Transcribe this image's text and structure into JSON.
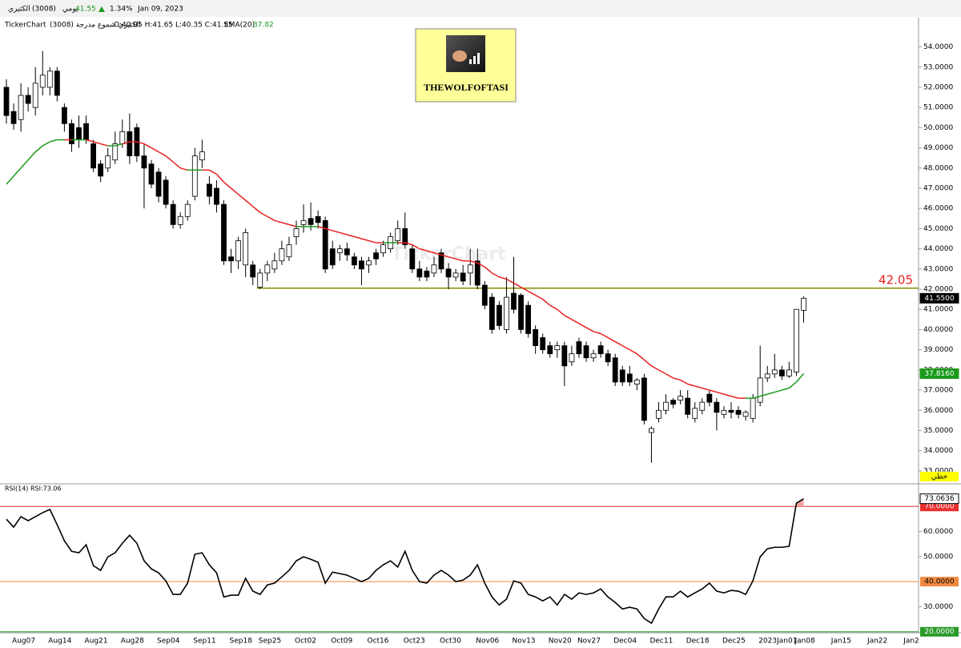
{
  "header": {
    "name": "الكثيري",
    "code": "(3008)",
    "period": "يومي",
    "price": "41.55",
    "change": "1.34%",
    "date": "Jan 09, 2023"
  },
  "legend_line": {
    "source": "TickerChart",
    "title": "الكثيري شموع مدرجة (3008)",
    "ohlc": "O:40.95 H:41.65 L:40.35 C:41.55",
    "ema_value": "37.82"
  },
  "logo": {
    "text": "THEWOLFOFTASI"
  },
  "watermark": "TickerChart",
  "chart_data": [
    {
      "type": "candlestick",
      "up_color": "#ffffff",
      "down_color": "#000000",
      "categories": [
        null,
        "Aug07",
        null,
        null,
        null,
        null,
        "Aug14",
        null,
        null,
        null,
        null,
        "Aug21",
        null,
        null,
        null,
        null,
        "Aug28",
        null,
        null,
        null,
        null,
        "Sep04",
        null,
        null,
        null,
        null,
        "Sep11",
        null,
        null,
        null,
        null,
        "Sep18",
        null,
        null,
        null,
        "Sep25",
        null,
        null,
        null,
        null,
        "Oct02",
        null,
        null,
        null,
        null,
        "Oct09",
        null,
        null,
        null,
        null,
        "Oct16",
        null,
        null,
        null,
        null,
        "Oct23",
        null,
        null,
        null,
        null,
        "Oct30",
        null,
        null,
        null,
        null,
        "Nov06",
        null,
        null,
        null,
        null,
        "Nov13",
        null,
        null,
        null,
        null,
        "Nov20",
        null,
        null,
        null,
        "Nov27",
        null,
        null,
        null,
        null,
        "Dec04",
        null,
        null,
        null,
        null,
        "Dec11",
        null,
        null,
        null,
        null,
        "Dec18",
        null,
        null,
        null,
        null,
        "Dec25",
        null,
        null,
        null,
        null,
        "2023Jan01",
        null,
        null,
        null,
        null,
        "Jan08",
        null,
        null,
        null,
        null,
        "Jan15",
        null,
        null,
        null,
        null,
        "Jan22",
        null,
        null,
        null,
        null,
        "Jan2"
      ],
      "open": [
        52.0,
        50.8,
        50.4,
        51.6,
        51.0,
        52.0,
        52.0,
        52.8,
        51.0,
        50.2,
        50.0,
        50.2,
        49.2,
        48.2,
        48.0,
        48.4,
        49.2,
        49.8,
        50.0,
        48.6,
        48.2,
        47.8,
        47.4,
        46.2,
        45.2,
        45.6,
        46.6,
        48.4,
        47.2,
        47.0,
        46.2,
        43.6,
        43.4,
        43.2,
        43.2,
        42.1,
        42.8,
        43.0,
        43.4,
        43.6,
        44.6,
        45.2,
        45.5,
        45.6,
        45.4,
        44.0,
        43.8,
        44.0,
        43.6,
        43.4,
        43.2,
        43.8,
        43.8,
        44.0,
        44.4,
        45.0,
        44.0,
        43.0,
        42.9,
        42.8,
        43.8,
        43.0,
        42.6,
        42.8,
        42.8,
        43.4,
        42.2,
        41.6,
        41.2,
        40.0,
        41.8,
        41.7,
        41.2,
        40.0,
        39.6,
        39.2,
        39.0,
        39.2,
        38.4,
        39.4,
        39.2,
        38.6,
        39.2,
        38.8,
        38.6,
        38.0,
        37.8,
        37.3,
        37.6,
        34.9,
        35.6,
        36.0,
        36.5,
        36.5,
        36.6,
        35.6,
        36.0,
        36.8,
        36.4,
        35.8,
        36.0,
        36.0,
        35.7,
        35.6,
        36.4,
        37.6,
        37.8,
        38.0,
        37.7,
        37.9,
        40.95,
        null,
        null,
        null,
        null,
        null,
        null,
        null,
        null,
        null,
        null,
        null,
        null,
        null,
        null
      ],
      "high": [
        52.4,
        51.2,
        52.2,
        52.0,
        53.0,
        53.8,
        53.0,
        53.0,
        51.2,
        50.4,
        50.6,
        50.6,
        49.4,
        48.4,
        49.0,
        49.8,
        50.4,
        50.7,
        50.2,
        49.2,
        48.4,
        48.0,
        47.6,
        46.4,
        45.8,
        46.4,
        49.0,
        49.4,
        47.6,
        47.4,
        46.4,
        44.0,
        44.6,
        45.0,
        43.4,
        43.0,
        43.4,
        43.8,
        44.4,
        44.6,
        45.4,
        46.2,
        46.3,
        45.9,
        45.6,
        44.4,
        44.2,
        44.3,
        43.8,
        43.6,
        43.6,
        44.0,
        44.4,
        44.8,
        45.4,
        45.8,
        44.2,
        43.4,
        43.1,
        43.6,
        44.0,
        43.3,
        43.0,
        43.2,
        44.0,
        44.0,
        42.4,
        41.8,
        41.4,
        42.6,
        43.6,
        41.8,
        41.4,
        40.2,
        39.8,
        39.4,
        39.4,
        39.4,
        39.2,
        39.6,
        39.4,
        39.0,
        39.4,
        39.0,
        38.8,
        38.2,
        38.2,
        37.6,
        37.8,
        35.2,
        36.4,
        36.8,
        36.6,
        37.0,
        37.0,
        36.4,
        36.6,
        37.0,
        36.6,
        36.2,
        36.4,
        36.2,
        36.0,
        36.8,
        39.2,
        38.2,
        38.8,
        38.2,
        38.4,
        41.0,
        41.65,
        null,
        null,
        null,
        null,
        null,
        null,
        null,
        null,
        null,
        null,
        null,
        null,
        null,
        null
      ],
      "low": [
        50.2,
        49.9,
        49.8,
        50.8,
        50.6,
        51.6,
        51.6,
        51.3,
        49.8,
        48.8,
        49.0,
        49.2,
        47.8,
        47.3,
        47.8,
        48.2,
        49.0,
        48.2,
        48.3,
        46.0,
        47.0,
        46.3,
        46.0,
        45.0,
        45.0,
        45.4,
        46.4,
        48.0,
        46.2,
        45.8,
        43.2,
        42.8,
        43.0,
        42.6,
        42.2,
        42.0,
        42.4,
        42.8,
        43.2,
        43.4,
        44.2,
        44.8,
        44.9,
        45.0,
        42.8,
        43.0,
        43.4,
        43.4,
        43.0,
        42.2,
        42.8,
        43.2,
        43.6,
        43.8,
        44.2,
        44.0,
        42.8,
        42.4,
        42.4,
        42.6,
        42.8,
        42.0,
        42.4,
        42.2,
        42.2,
        42.0,
        41.0,
        39.8,
        40.0,
        39.8,
        40.8,
        39.8,
        39.6,
        38.8,
        38.8,
        38.6,
        38.6,
        37.2,
        38.2,
        38.6,
        38.4,
        38.4,
        38.6,
        38.2,
        37.2,
        37.2,
        37.2,
        37.0,
        35.3,
        33.4,
        35.4,
        35.8,
        36.1,
        36.3,
        35.6,
        35.4,
        35.8,
        36.2,
        35.0,
        35.6,
        35.6,
        35.6,
        35.5,
        35.4,
        36.2,
        37.4,
        37.6,
        37.5,
        37.6,
        37.7,
        40.35,
        null,
        null,
        null,
        null,
        null,
        null,
        null,
        null,
        null,
        null,
        null,
        null,
        null,
        null
      ],
      "close": [
        50.6,
        50.2,
        51.6,
        51.2,
        52.2,
        52.6,
        52.8,
        51.6,
        50.2,
        49.2,
        49.4,
        49.4,
        48.0,
        47.6,
        48.6,
        49.2,
        49.8,
        48.6,
        48.6,
        48.0,
        47.2,
        46.6,
        46.2,
        45.2,
        45.6,
        46.2,
        48.6,
        48.8,
        46.6,
        46.2,
        43.4,
        43.4,
        44.4,
        44.8,
        42.6,
        42.8,
        43.2,
        43.4,
        44.0,
        44.2,
        45.0,
        45.4,
        45.2,
        45.3,
        43.0,
        43.2,
        44.0,
        43.7,
        43.2,
        43.0,
        43.4,
        43.5,
        44.2,
        44.6,
        45.0,
        44.2,
        43.0,
        42.6,
        42.6,
        43.2,
        43.0,
        42.6,
        42.8,
        42.4,
        43.2,
        42.2,
        41.2,
        40.0,
        40.2,
        41.6,
        41.0,
        40.0,
        39.8,
        39.2,
        39.0,
        38.8,
        39.2,
        38.2,
        38.8,
        38.8,
        38.6,
        38.8,
        38.8,
        38.4,
        37.4,
        37.4,
        37.4,
        37.5,
        35.5,
        35.1,
        36.0,
        36.4,
        36.3,
        36.7,
        35.8,
        36.1,
        36.4,
        36.4,
        35.9,
        36.0,
        35.9,
        35.8,
        35.9,
        36.6,
        37.6,
        37.8,
        38.0,
        37.7,
        38.0,
        41.0,
        41.55,
        null,
        null,
        null,
        null,
        null,
        null,
        null,
        null,
        null,
        null,
        null,
        null,
        null,
        null
      ],
      "series": [
        {
          "name": "EMA(20)",
          "up_color": "#1a9a1a",
          "down_color": "#e82020",
          "values": [
            47.2,
            47.6,
            48.0,
            48.4,
            48.8,
            49.1,
            49.3,
            49.4,
            49.4,
            49.4,
            49.4,
            49.4,
            49.3,
            49.2,
            49.1,
            49.1,
            49.2,
            49.3,
            49.3,
            49.2,
            49.0,
            48.8,
            48.6,
            48.3,
            48.0,
            47.9,
            47.9,
            47.9,
            47.9,
            47.7,
            47.3,
            47.0,
            46.7,
            46.4,
            46.1,
            45.8,
            45.6,
            45.4,
            45.3,
            45.2,
            45.1,
            45.1,
            45.1,
            45.1,
            45.0,
            44.9,
            44.8,
            44.7,
            44.6,
            44.5,
            44.4,
            44.3,
            44.3,
            44.3,
            44.3,
            44.3,
            44.2,
            44.0,
            43.9,
            43.8,
            43.7,
            43.6,
            43.5,
            43.4,
            43.4,
            43.3,
            43.1,
            42.8,
            42.6,
            42.5,
            42.3,
            42.1,
            41.9,
            41.7,
            41.5,
            41.2,
            41.0,
            40.7,
            40.5,
            40.3,
            40.1,
            39.9,
            39.8,
            39.6,
            39.4,
            39.2,
            39.0,
            38.8,
            38.5,
            38.2,
            38.0,
            37.8,
            37.6,
            37.5,
            37.3,
            37.2,
            37.1,
            37.0,
            36.9,
            36.8,
            36.7,
            36.6,
            36.6,
            36.6,
            36.7,
            36.8,
            36.9,
            37.0,
            37.1,
            37.4,
            37.82,
            null,
            null,
            null,
            null,
            null,
            null,
            null,
            null,
            null,
            null,
            null,
            null,
            null,
            null
          ]
        }
      ],
      "ylim": [
        32.4,
        55.45
      ],
      "yticks": [
        {
          "value": 33,
          "label": "33.0000"
        },
        {
          "value": 34,
          "label": "34.0000"
        },
        {
          "value": 35,
          "label": "35.0000"
        },
        {
          "value": 36,
          "label": "36.0000"
        },
        {
          "value": 37,
          "label": "37.0000"
        },
        {
          "value": 38,
          "label": "38.0000"
        },
        {
          "value": 39,
          "label": "39.0000"
        },
        {
          "value": 40,
          "label": "40.0000"
        },
        {
          "value": 41,
          "label": "41.0000"
        },
        {
          "value": 42,
          "label": "42.0000"
        },
        {
          "value": 43,
          "label": "43.0000"
        },
        {
          "value": 44,
          "label": "44.0000"
        },
        {
          "value": 45,
          "label": "45.0000"
        },
        {
          "value": 46,
          "label": "46.0000"
        },
        {
          "value": 47,
          "label": "47.0000"
        },
        {
          "value": 48,
          "label": "48.0000"
        },
        {
          "value": 49,
          "label": "49.0000"
        },
        {
          "value": 50,
          "label": "50.0000"
        },
        {
          "value": 51,
          "label": "51.0000"
        },
        {
          "value": 52,
          "label": "52.0000"
        },
        {
          "value": 53,
          "label": "53.0000"
        },
        {
          "value": 54,
          "label": "54.0000"
        }
      ],
      "hline": {
        "value": 42.05,
        "color": "#8a8a00",
        "label_color": "#e82020"
      },
      "last_tag": {
        "value": 41.55,
        "label": "41.5500",
        "color": "#000000"
      },
      "ema_tag": {
        "value": 37.816,
        "label": "37.8160",
        "color": "#1a9a1a"
      },
      "mode_label": "خطي"
    },
    {
      "type": "line",
      "title": "RSI(14) RSI:73.06",
      "color": "#000000",
      "fill_above_color": "#f4a0a0",
      "values": [
        64.9,
        61.7,
        65.9,
        64.3,
        65.9,
        67.5,
        68.8,
        62.7,
        56.3,
        52.1,
        51.5,
        54.7,
        46.4,
        44.5,
        49.9,
        51.5,
        55.3,
        58.5,
        55.3,
        48.3,
        45.1,
        43.5,
        40.3,
        34.9,
        34.9,
        39.4,
        50.9,
        51.5,
        46.7,
        43.5,
        33.9,
        34.6,
        34.6,
        41.3,
        36.2,
        34.9,
        38.7,
        39.4,
        41.9,
        44.5,
        48.3,
        49.9,
        48.9,
        47.7,
        39.4,
        43.8,
        43.2,
        42.6,
        41.3,
        40.0,
        41.3,
        44.5,
        46.7,
        48.3,
        45.8,
        52.1,
        44.5,
        40.0,
        39.4,
        42.6,
        44.5,
        42.6,
        40.0,
        40.6,
        42.6,
        46.7,
        39.4,
        33.9,
        30.7,
        33.0,
        40.3,
        39.4,
        34.9,
        33.9,
        32.3,
        33.9,
        30.7,
        34.9,
        33.0,
        35.5,
        34.9,
        35.5,
        37.1,
        33.9,
        31.7,
        29.1,
        29.8,
        29.1,
        25.3,
        23.4,
        29.1,
        33.9,
        33.9,
        36.2,
        33.9,
        35.5,
        37.1,
        39.4,
        36.2,
        35.5,
        36.5,
        36.2,
        34.9,
        40.3,
        49.9,
        53.1,
        53.7,
        53.7,
        54.1,
        71.3,
        73.0636,
        null,
        null,
        null,
        null,
        null,
        null,
        null,
        null,
        null,
        null,
        null,
        null,
        null,
        null
      ],
      "ylim": [
        19.6,
        78.7
      ],
      "yticks": [
        {
          "value": 30,
          "label": "30.0000"
        },
        {
          "value": 50,
          "label": "50.0000"
        },
        {
          "value": 60,
          "label": "60.0000"
        }
      ],
      "levels": [
        {
          "value": 70,
          "label": "70.0000",
          "color": "#e83030",
          "text_color": "#ffffff"
        },
        {
          "value": 40,
          "label": "40.0000",
          "color": "#f08a40",
          "text_color": "#000000"
        },
        {
          "value": 20,
          "label": "20.0000",
          "color": "#2a9a2a",
          "text_color": "#ffffff"
        }
      ],
      "last_tag": {
        "value": 73.0636,
        "label": "73.0636",
        "color": "#ffffff"
      }
    }
  ]
}
